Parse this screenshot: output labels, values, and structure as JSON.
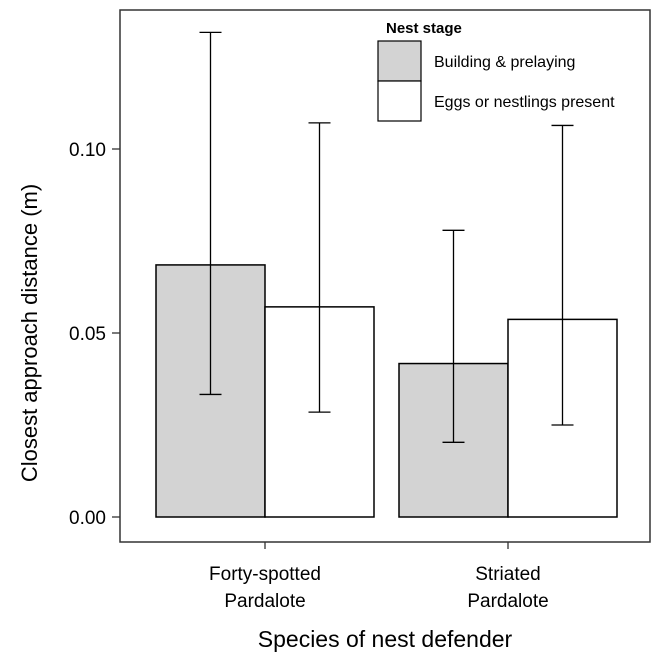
{
  "chart_data": {
    "type": "bar",
    "xlabel": "Species of nest defender",
    "ylabel": "Closest approach distance (m)",
    "ylim": [
      0,
      0.14
    ],
    "yticks": [
      0.0,
      0.05,
      0.1
    ],
    "ytick_labels": [
      "0.00",
      "0.05",
      "0.10"
    ],
    "categories": [
      [
        "Forty-spotted",
        "Pardalote"
      ],
      [
        "Striated",
        "Pardalote"
      ]
    ],
    "legend": {
      "title": "Nest stage",
      "position": "top-right"
    },
    "series": [
      {
        "name": "Building & prelaying",
        "color": "#d3d3d3",
        "values": [
          0.0685,
          0.0417
        ],
        "error_low": [
          0.0333,
          0.0203
        ],
        "error_high": [
          0.1317,
          0.0779
        ]
      },
      {
        "name": "Eggs or nestlings present",
        "color": "#ffffff",
        "values": [
          0.0571,
          0.0537
        ],
        "error_low": [
          0.0285,
          0.025
        ],
        "error_high": [
          0.1071,
          0.1064
        ]
      }
    ],
    "grid": false
  }
}
